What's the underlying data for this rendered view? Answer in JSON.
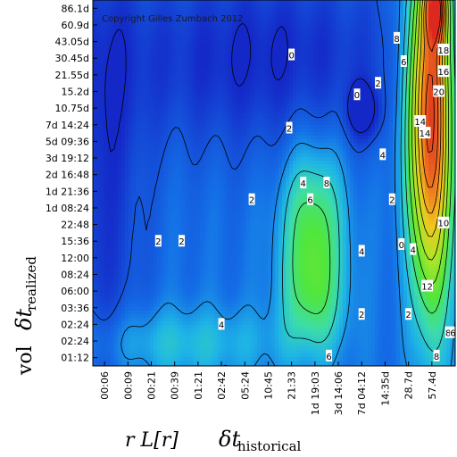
{
  "chart_data": {
    "type": "heatmap",
    "copyright": "Copyright Gilles Zumbach 2012",
    "x_ticks": [
      "00:06",
      "00:09",
      "00:21",
      "00:39",
      "01:21",
      "02:42",
      "05:24",
      "10:45",
      "21:33",
      "1d 19:03",
      "3d 14:06",
      "7d 04:12",
      "14:35d",
      "28.7d",
      "57.4d"
    ],
    "y_ticks": [
      "86.1d",
      "60.9d",
      "43.05d",
      "30.45d",
      "21.55d",
      "15.2d",
      "10.75d",
      "7d 14:24",
      "5d 09:36",
      "3d 19:12",
      "2d 16:48",
      "1d 21:36",
      "1d 08:24",
      "22:48",
      "15:36",
      "12:00",
      "08:24",
      "06:00",
      "03:36",
      "02:24",
      "02:24",
      "01:12"
    ],
    "xlabel_main": "r L[r]",
    "xlabel_delta": "δt",
    "xlabel_sub": "historical",
    "ylabel_main": "vol",
    "ylabel_delta": "δt",
    "ylabel_sub": "realized",
    "contour_labels": [
      {
        "text": "0",
        "col": 8.0,
        "row": 2.8
      },
      {
        "text": "8",
        "col": 12.5,
        "row": 1.8
      },
      {
        "text": "6",
        "col": 12.8,
        "row": 3.2
      },
      {
        "text": "18",
        "col": 14.5,
        "row": 2.5
      },
      {
        "text": "16",
        "col": 14.5,
        "row": 3.8
      },
      {
        "text": "20",
        "col": 14.3,
        "row": 5.0
      },
      {
        "text": "14",
        "col": 13.5,
        "row": 6.8
      },
      {
        "text": "14",
        "col": 13.7,
        "row": 7.5
      },
      {
        "text": "2",
        "col": 11.7,
        "row": 4.5
      },
      {
        "text": "0",
        "col": 10.8,
        "row": 5.2
      },
      {
        "text": "2",
        "col": 7.9,
        "row": 7.2
      },
      {
        "text": "4",
        "col": 11.9,
        "row": 8.8
      },
      {
        "text": "4",
        "col": 8.5,
        "row": 10.5
      },
      {
        "text": "8",
        "col": 9.5,
        "row": 10.5
      },
      {
        "text": "6",
        "col": 8.8,
        "row": 11.5
      },
      {
        "text": "2",
        "col": 6.3,
        "row": 11.5
      },
      {
        "text": "2",
        "col": 12.3,
        "row": 11.5
      },
      {
        "text": "10",
        "col": 14.5,
        "row": 12.9
      },
      {
        "text": "2",
        "col": 2.3,
        "row": 14.0
      },
      {
        "text": "2",
        "col": 3.3,
        "row": 14.0
      },
      {
        "text": "0",
        "col": 12.7,
        "row": 14.2
      },
      {
        "text": "4",
        "col": 13.2,
        "row": 14.5
      },
      {
        "text": "4",
        "col": 11.0,
        "row": 14.6
      },
      {
        "text": "12",
        "col": 13.8,
        "row": 16.7
      },
      {
        "text": "2",
        "col": 11.0,
        "row": 18.4
      },
      {
        "text": "2",
        "col": 13.0,
        "row": 18.4
      },
      {
        "text": "4",
        "col": 5.0,
        "row": 19.0
      },
      {
        "text": "6",
        "col": 9.6,
        "row": 20.9
      },
      {
        "text": "8",
        "col": 14.7,
        "row": 19.5
      },
      {
        "text": "6",
        "col": 14.9,
        "row": 19.5
      },
      {
        "text": "8",
        "col": 14.2,
        "row": 20.9
      }
    ]
  }
}
